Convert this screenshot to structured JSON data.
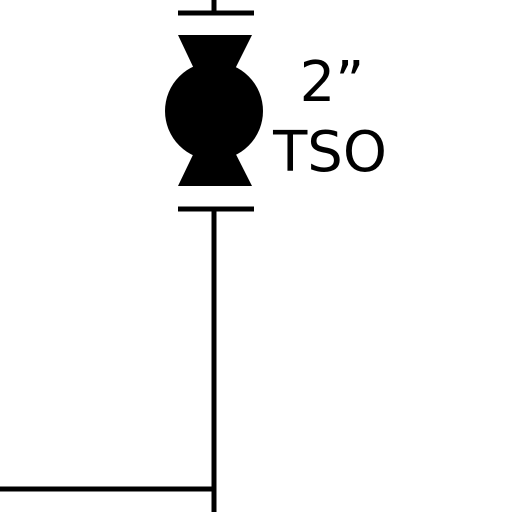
{
  "valve": {
    "size": "2”",
    "tag": "TSO"
  },
  "colors": {
    "line": "#000000",
    "background": "#ffffff"
  },
  "icons": {
    "valve_symbol": "ball-valve-icon"
  }
}
